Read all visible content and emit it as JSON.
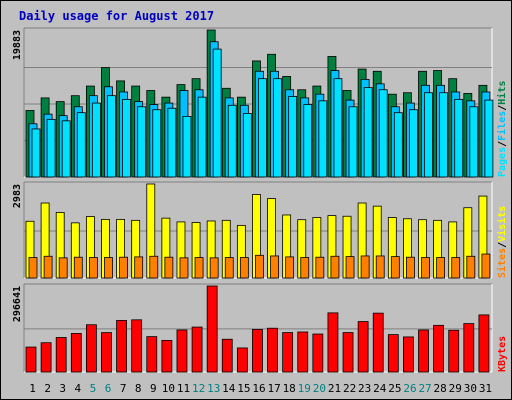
{
  "title": "Daily usage for August 2017",
  "colors": {
    "frame_bg": "#c0c0c0",
    "title": "#0000c0",
    "hits": "#008040",
    "files": "#00c0ff",
    "pages": "#00e0ff",
    "visits": "#ffff00",
    "sites": "#ff8000",
    "kbytes": "#ff0000",
    "weekend_day": "#008080",
    "weekday_day": "#000000"
  },
  "chart_data": [
    {
      "type": "bar",
      "panel": "hits-files-pages",
      "title": "Daily usage for August 2017",
      "ylabel_parts": [
        "Pages",
        "/",
        "Files",
        "/",
        "Hits"
      ],
      "ymax_label": "19883",
      "ylim": [
        0,
        19883
      ],
      "categories": [
        "1",
        "2",
        "3",
        "4",
        "5",
        "6",
        "7",
        "8",
        "9",
        "10",
        "11",
        "12",
        "13",
        "14",
        "15",
        "16",
        "17",
        "18",
        "19",
        "20",
        "21",
        "22",
        "23",
        "24",
        "25",
        "26",
        "27",
        "28",
        "29",
        "30",
        "31"
      ],
      "series": [
        {
          "name": "Hits",
          "values": [
            9000,
            10700,
            10200,
            11000,
            12300,
            14800,
            13000,
            12300,
            11700,
            10800,
            12500,
            13300,
            19883,
            12000,
            10800,
            15700,
            16600,
            13600,
            11800,
            12300,
            16300,
            11700,
            14600,
            14300,
            11200,
            11400,
            14300,
            14400,
            13300,
            11300,
            12400
          ]
        },
        {
          "name": "Files",
          "values": [
            7200,
            8500,
            8300,
            9500,
            11000,
            12200,
            11500,
            10200,
            9800,
            10000,
            11700,
            11800,
            18300,
            10700,
            9700,
            14300,
            14300,
            11800,
            10700,
            11200,
            14400,
            10400,
            13200,
            12600,
            9500,
            10000,
            12400,
            12400,
            11500,
            10300,
            11500
          ]
        },
        {
          "name": "Pages",
          "values": [
            6500,
            7800,
            7600,
            8700,
            10000,
            11000,
            10500,
            9500,
            9100,
            9300,
            8200,
            10800,
            17300,
            9700,
            8600,
            13300,
            13300,
            10900,
            9800,
            10300,
            13300,
            9500,
            12100,
            11800,
            8700,
            9100,
            11400,
            11400,
            10500,
            9500,
            10400
          ]
        }
      ]
    },
    {
      "type": "bar",
      "panel": "visits-sites",
      "ylabel_parts": [
        "Sites",
        "/",
        "Visits"
      ],
      "ymax_label": "2983",
      "ylim": [
        0,
        2983
      ],
      "categories": [
        "1",
        "2",
        "3",
        "4",
        "5",
        "6",
        "7",
        "8",
        "9",
        "10",
        "11",
        "12",
        "13",
        "14",
        "15",
        "16",
        "17",
        "18",
        "19",
        "20",
        "21",
        "22",
        "23",
        "24",
        "25",
        "26",
        "27",
        "28",
        "29",
        "30",
        "31"
      ],
      "series": [
        {
          "name": "Visits",
          "values": [
            1800,
            2380,
            2080,
            1750,
            1950,
            1860,
            1860,
            1830,
            2983,
            1900,
            1780,
            1760,
            1810,
            1830,
            1670,
            2650,
            2520,
            2000,
            1850,
            1920,
            1980,
            1960,
            2380,
            2280,
            1920,
            1880,
            1850,
            1830,
            1780,
            2230,
            2600
          ]
        },
        {
          "name": "Sites",
          "values": [
            650,
            690,
            640,
            660,
            650,
            650,
            660,
            670,
            690,
            660,
            640,
            650,
            640,
            650,
            650,
            720,
            700,
            670,
            650,
            660,
            690,
            680,
            700,
            700,
            680,
            660,
            650,
            650,
            650,
            690,
            760
          ]
        }
      ]
    },
    {
      "type": "bar",
      "panel": "kbytes",
      "ylabel_parts": [
        "KBytes"
      ],
      "ymax_label": "296641",
      "ylim": [
        0,
        296641
      ],
      "categories": [
        "1",
        "2",
        "3",
        "4",
        "5",
        "6",
        "7",
        "8",
        "9",
        "10",
        "11",
        "12",
        "13",
        "14",
        "15",
        "16",
        "17",
        "18",
        "19",
        "20",
        "21",
        "22",
        "23",
        "24",
        "25",
        "26",
        "27",
        "28",
        "29",
        "30",
        "31"
      ],
      "series": [
        {
          "name": "KBytes",
          "values": [
            86000,
            101000,
            119000,
            133000,
            163000,
            136000,
            178000,
            180000,
            122000,
            109000,
            145000,
            155000,
            296641,
            113000,
            83000,
            147000,
            151000,
            136000,
            138000,
            131000,
            204000,
            136000,
            174000,
            203000,
            129000,
            121000,
            145000,
            161000,
            144000,
            167000,
            197000
          ]
        }
      ]
    }
  ]
}
